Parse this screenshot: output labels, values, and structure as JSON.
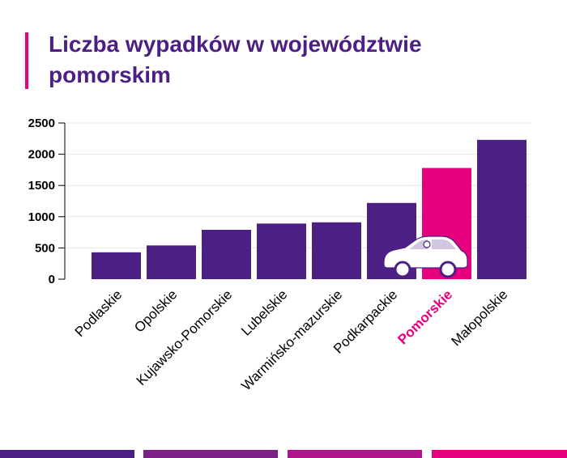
{
  "title": "Liczba wypadków w województwie pomorskim",
  "colors": {
    "accent": "#e6007e",
    "bar": "#4b1f84",
    "highlight": "#e6007e",
    "title": "#4b1f84",
    "strip": [
      "#4b1f84",
      "#7b2186",
      "#b0148a",
      "#e6007e"
    ]
  },
  "chart_data": {
    "type": "bar",
    "title": "Liczba wypadków w województwie pomorskim",
    "xlabel": "",
    "ylabel": "",
    "categories": [
      "Podlaskie",
      "Opolskie",
      "Kujawsko-Pomorskie",
      "Lubelskie",
      "Warmińsko-mazurskie",
      "Podkarpackie",
      "Pomorskie",
      "Małopolskie"
    ],
    "values": [
      430,
      540,
      790,
      890,
      910,
      1220,
      1780,
      2230
    ],
    "highlight_category": "Pomorskie",
    "ylim": [
      0,
      2500
    ],
    "yticks": [
      0,
      500,
      1000,
      1500,
      2000,
      2500
    ],
    "grid": true,
    "legend": "none",
    "icons": [
      "car-icon"
    ]
  }
}
